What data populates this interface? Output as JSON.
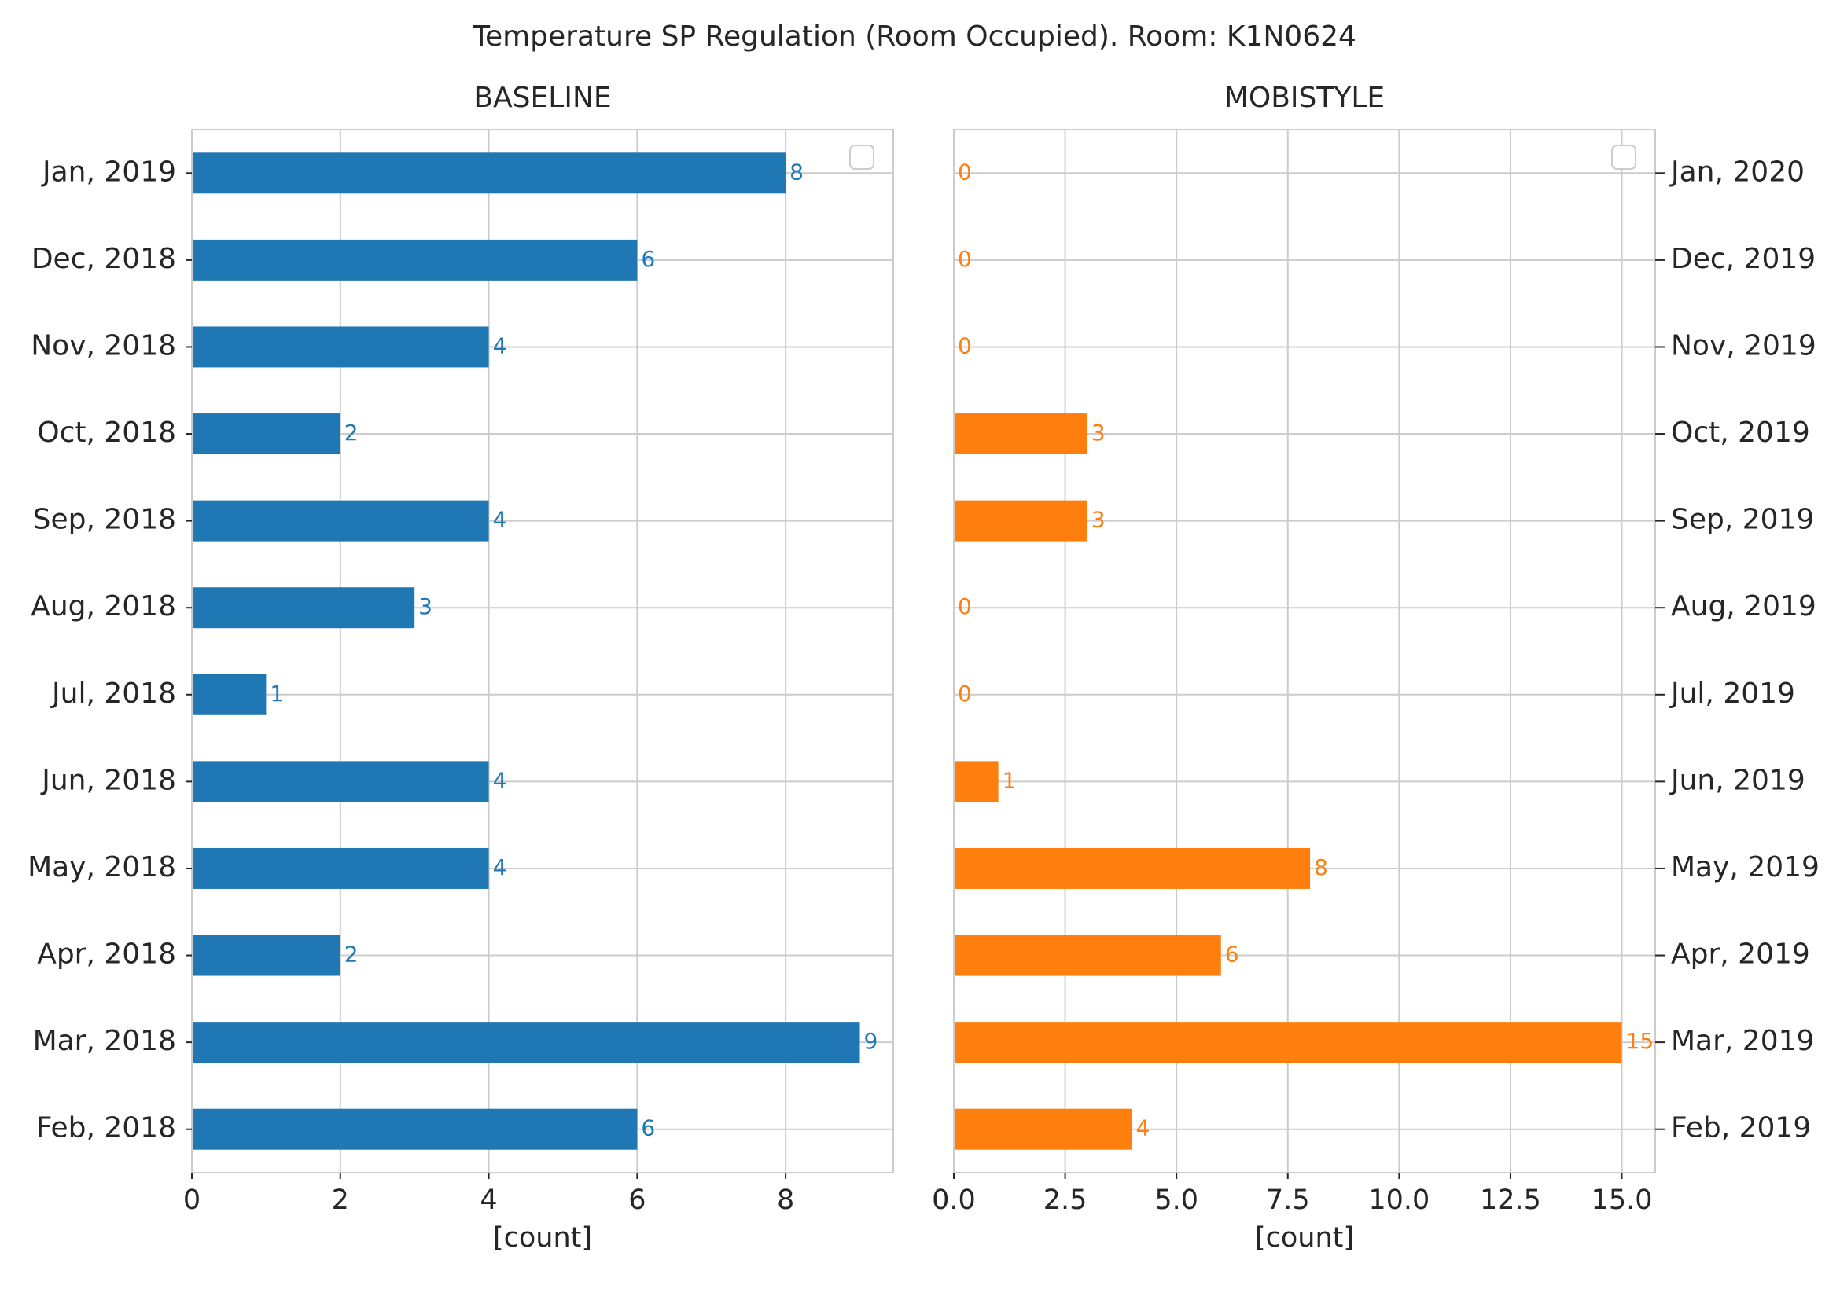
{
  "figure": {
    "title": "Temperature SP Regulation (Room Occupied). Room: K1N0624"
  },
  "chart_data": [
    {
      "type": "bar",
      "orientation": "horizontal",
      "title": "BASELINE",
      "xlabel": "[count]",
      "ylabel": "",
      "color": "#1f77b4",
      "categories": [
        "Feb, 2018",
        "Mar, 2018",
        "Apr, 2018",
        "May, 2018",
        "Jun, 2018",
        "Jul, 2018",
        "Aug, 2018",
        "Sep, 2018",
        "Oct, 2018",
        "Nov, 2018",
        "Dec, 2018",
        "Jan, 2019"
      ],
      "values": [
        6,
        9,
        2,
        4,
        4,
        1,
        3,
        4,
        2,
        4,
        6,
        8
      ],
      "xlim": [
        0,
        9.45
      ],
      "xticks": [
        0,
        2,
        4,
        6,
        8
      ],
      "xtick_labels": [
        "0",
        "2",
        "4",
        "6",
        "8"
      ],
      "category_axis_side": "left",
      "grid": true,
      "legend": "top-right (empty)"
    },
    {
      "type": "bar",
      "orientation": "horizontal",
      "title": "MOBISTYLE",
      "xlabel": "[count]",
      "ylabel": "",
      "color": "#ff7f0e",
      "categories": [
        "Feb, 2019",
        "Mar, 2019",
        "Apr, 2019",
        "May, 2019",
        "Jun, 2019",
        "Jul, 2019",
        "Aug, 2019",
        "Sep, 2019",
        "Oct, 2019",
        "Nov, 2019",
        "Dec, 2019",
        "Jan, 2020"
      ],
      "values": [
        4,
        15,
        6,
        8,
        1,
        0,
        0,
        3,
        3,
        0,
        0,
        0
      ],
      "xlim": [
        0,
        15.75
      ],
      "xticks": [
        0,
        2.5,
        5,
        7.5,
        10,
        12.5,
        15
      ],
      "xtick_labels": [
        "0.0",
        "2.5",
        "5.0",
        "7.5",
        "10.0",
        "12.5",
        "15.0"
      ],
      "category_axis_side": "right",
      "grid": true,
      "legend": "top-right (empty)"
    }
  ]
}
